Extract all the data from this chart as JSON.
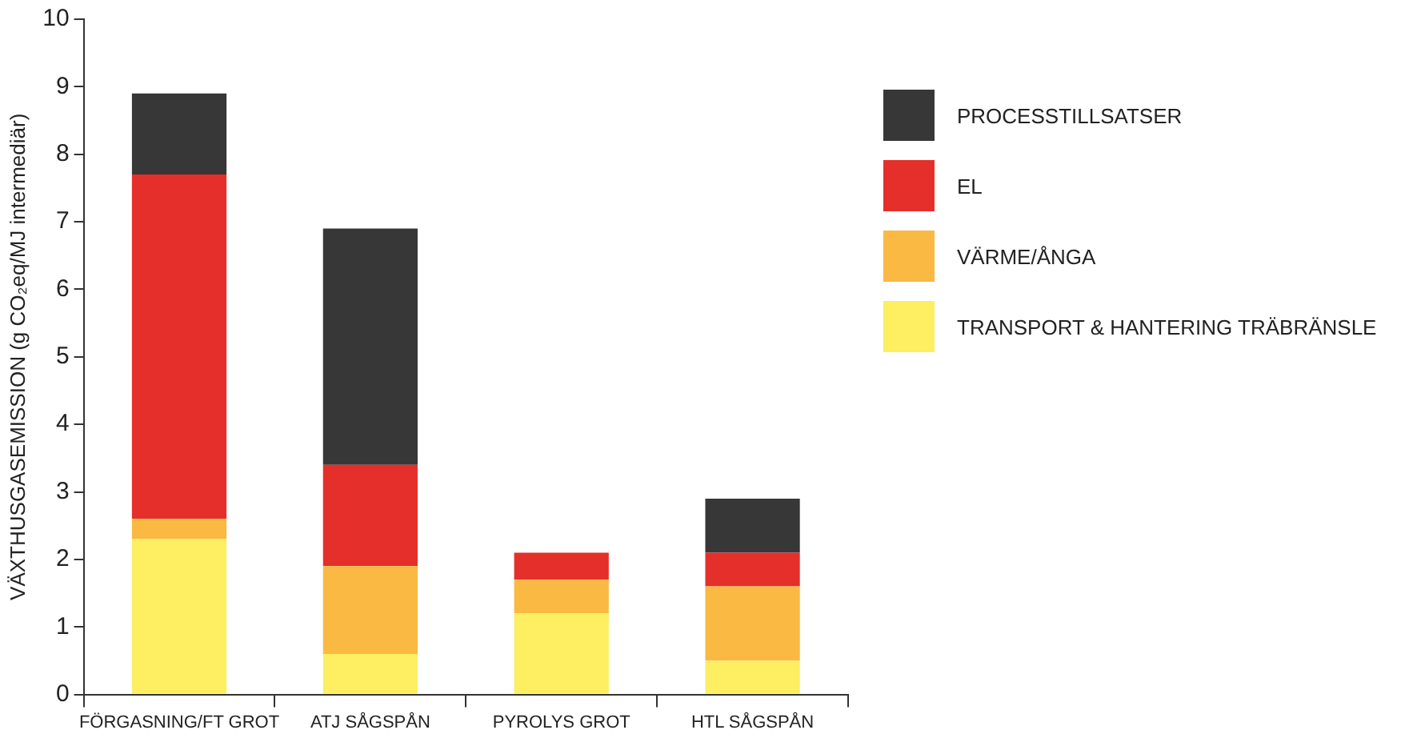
{
  "chart_data": {
    "type": "bar",
    "stacked": true,
    "ylabel": "VÄXTHUSGASEMISSION (g CO₂eq/MJ intermediär)",
    "categories": [
      "FÖRGASNING/FT GROT",
      "ATJ SÅGSPÅN",
      "PYROLYS GROT",
      "HTL SÅGSPÅN"
    ],
    "series": [
      {
        "name": "TRANSPORT & HANTERING TRÄBRÄNSLE",
        "color": "#fdee62",
        "values": [
          2.3,
          0.6,
          1.2,
          0.5
        ]
      },
      {
        "name": "VÄRME/ÅNGA",
        "color": "#f9b942",
        "values": [
          0.3,
          1.3,
          0.5,
          1.1
        ]
      },
      {
        "name": "EL",
        "color": "#e52f2a",
        "values": [
          5.1,
          1.5,
          0.4,
          0.5
        ]
      },
      {
        "name": "PROCESSTILLSATSER",
        "color": "#373737",
        "values": [
          1.2,
          3.5,
          null,
          0.8
        ]
      }
    ],
    "ylim": [
      0,
      10
    ],
    "yticks": [
      0,
      1,
      2,
      3,
      4,
      5,
      6,
      7,
      8,
      9,
      10
    ],
    "grid": false,
    "legend": "right"
  }
}
